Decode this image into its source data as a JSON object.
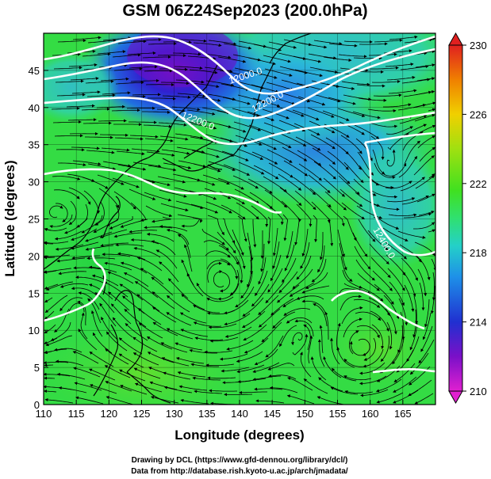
{
  "chart_data": {
    "type": "heatmap",
    "title": "GSM 06Z24Sep2023 (200.0hPa)",
    "xlabel": "Longitude (degrees)",
    "ylabel": "Latitude (degrees)",
    "xlim": [
      110,
      170
    ],
    "ylim": [
      0,
      50
    ],
    "x_ticks": [
      "110",
      "115",
      "120",
      "125",
      "130",
      "135",
      "140",
      "145",
      "150",
      "155",
      "160",
      "165"
    ],
    "y_ticks": [
      "0",
      "5",
      "10",
      "15",
      "20",
      "25",
      "30",
      "35",
      "40",
      "45"
    ],
    "colorbar": {
      "ticks": [
        "210",
        "214",
        "218",
        "222",
        "226",
        "230"
      ],
      "range": [
        210,
        230
      ],
      "colors": [
        "#e020d0",
        "#7a10c8",
        "#2030d0",
        "#1e90e8",
        "#24d0c8",
        "#30e070",
        "#40e020",
        "#a0e010",
        "#f0d000",
        "#f08000",
        "#e02020"
      ]
    },
    "contour_labels": [
      "12000.0",
      "12200.0",
      "12200.0",
      "12400.0"
    ],
    "contour_color": "#ffffff",
    "layers": [
      "temperature shading",
      "geopotential height contours",
      "wind streamlines",
      "coastlines"
    ],
    "grid": true
  },
  "credits": {
    "line1": "Drawing by DCL (https://www.gfd-dennou.org/library/dcl/)",
    "line2": "Data from http://database.rish.kyoto-u.ac.jp/arch/jmadata/"
  }
}
